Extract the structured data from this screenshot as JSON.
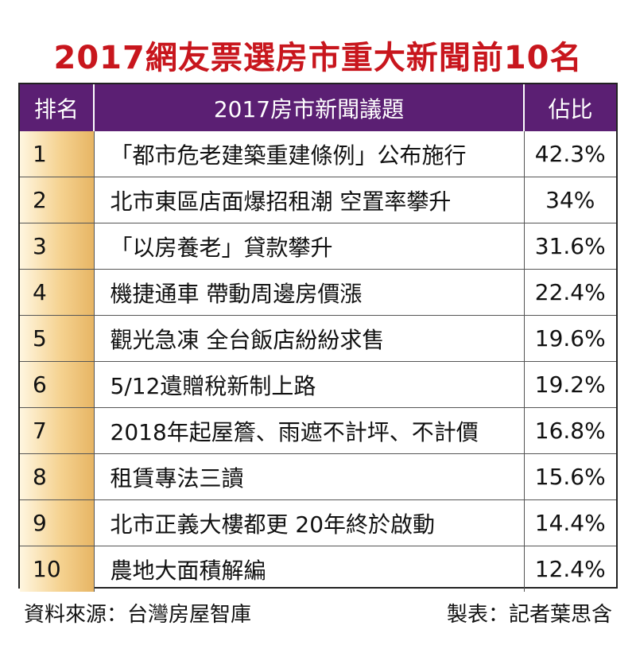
{
  "chart_data": {
    "type": "table",
    "title": "2017網友票選房市重大新聞前10名",
    "columns": [
      "排名",
      "2017房市新聞議題",
      "佔比"
    ],
    "rows": [
      {
        "rank": "1",
        "topic": "「都市危老建築重建條例」公布施行",
        "share": "42.3%"
      },
      {
        "rank": "2",
        "topic": "北市東區店面爆招租潮 空置率攀升",
        "share": "34%"
      },
      {
        "rank": "3",
        "topic": "「以房養老」貸款攀升",
        "share": "31.6%"
      },
      {
        "rank": "4",
        "topic": "機捷通車 帶動周邊房價漲",
        "share": "22.4%"
      },
      {
        "rank": "5",
        "topic": "觀光急凍 全台飯店紛紛求售",
        "share": "19.6%"
      },
      {
        "rank": "6",
        "topic": "5/12遺贈稅新制上路",
        "share": "19.2%"
      },
      {
        "rank": "7",
        "topic": "2018年起屋簷、雨遮不計坪、不計價",
        "share": "16.8%"
      },
      {
        "rank": "8",
        "topic": "租賃專法三讀",
        "share": "15.6%"
      },
      {
        "rank": "9",
        "topic": "北市正義大樓都更 20年終於啟動",
        "share": "14.4%"
      },
      {
        "rank": "10",
        "topic": "農地大面積解編",
        "share": "12.4%"
      }
    ],
    "source": "資料來源：台灣房屋智庫",
    "author": "製表：記者葉思含"
  },
  "colors": {
    "title": "#c8161d",
    "header_bg": "#5b1f73",
    "rank_gradient_end": "#e7b564"
  }
}
